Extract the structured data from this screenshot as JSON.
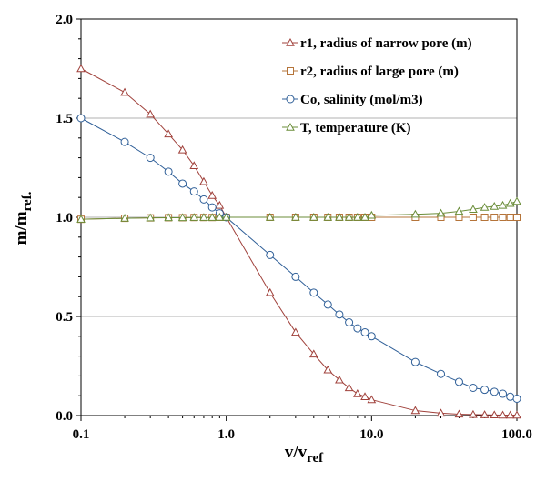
{
  "chart_data": {
    "type": "line",
    "xlabel": "v/v",
    "xlabel_sub": "ref",
    "ylabel": "m/m",
    "ylabel_sub": "ref.",
    "x_scale": "log",
    "xlim": [
      0.1,
      100
    ],
    "ylim": [
      0,
      2
    ],
    "x_ticks": [
      0.1,
      1,
      10,
      100
    ],
    "x_tick_labels": [
      "0.1",
      "1.0",
      "10.0",
      "100.0"
    ],
    "y_ticks": [
      0,
      0.5,
      1,
      1.5,
      2
    ],
    "y_tick_labels": [
      "0.0",
      "0.5",
      "1.0",
      "1.5",
      "2.0"
    ],
    "grid": "horizontal",
    "legend_position": "top-right",
    "series": [
      {
        "name": "r1, radius of narrow pore (m)",
        "marker": "triangle",
        "color": "#a0413b",
        "x": [
          0.1,
          0.2,
          0.3,
          0.4,
          0.5,
          0.6,
          0.7,
          0.8,
          0.9,
          1.0,
          2,
          3,
          4,
          5,
          6,
          7,
          8,
          9,
          10,
          20,
          30,
          40,
          50,
          60,
          70,
          80,
          90,
          100
        ],
        "y": [
          1.75,
          1.63,
          1.52,
          1.42,
          1.34,
          1.26,
          1.18,
          1.11,
          1.06,
          1.0,
          0.62,
          0.42,
          0.31,
          0.23,
          0.18,
          0.14,
          0.11,
          0.095,
          0.08,
          0.025,
          0.012,
          0.007,
          0.005,
          0.004,
          0.003,
          0.002,
          0.002,
          0.002
        ]
      },
      {
        "name": "r2, radius of large pore (m)",
        "marker": "square",
        "color": "#b5743a",
        "x": [
          0.1,
          0.2,
          0.3,
          0.4,
          0.5,
          0.6,
          0.7,
          0.8,
          0.9,
          1.0,
          2,
          3,
          4,
          5,
          6,
          7,
          8,
          9,
          10,
          20,
          30,
          40,
          50,
          60,
          70,
          80,
          90,
          100
        ],
        "y": [
          0.99,
          0.995,
          0.997,
          0.998,
          0.998,
          0.999,
          0.999,
          0.999,
          1.0,
          1.0,
          1.0,
          1.0,
          1.0,
          1.0,
          1.0,
          1.0,
          1.0,
          1.0,
          1.0,
          1.0,
          1.0,
          1.0,
          1.0,
          1.0,
          1.0,
          1.0,
          1.0,
          1.0
        ]
      },
      {
        "name": "Co, salinity (mol/m3)",
        "marker": "circle",
        "color": "#2f5f98",
        "x": [
          0.1,
          0.2,
          0.3,
          0.4,
          0.5,
          0.6,
          0.7,
          0.8,
          0.9,
          1.0,
          2,
          3,
          4,
          5,
          6,
          7,
          8,
          9,
          10,
          20,
          30,
          40,
          50,
          60,
          70,
          80,
          90,
          100
        ],
        "y": [
          1.5,
          1.38,
          1.3,
          1.23,
          1.17,
          1.13,
          1.09,
          1.05,
          1.02,
          1.0,
          0.81,
          0.7,
          0.62,
          0.56,
          0.51,
          0.47,
          0.44,
          0.42,
          0.4,
          0.27,
          0.21,
          0.17,
          0.14,
          0.13,
          0.12,
          0.11,
          0.095,
          0.085
        ]
      },
      {
        "name": "T, temperature (K)",
        "marker": "triangle",
        "color": "#6b8e3a",
        "x": [
          0.1,
          0.2,
          0.3,
          0.4,
          0.5,
          0.6,
          0.7,
          0.8,
          0.9,
          1.0,
          2,
          3,
          4,
          5,
          6,
          7,
          8,
          9,
          10,
          20,
          30,
          40,
          50,
          60,
          70,
          80,
          90,
          100
        ],
        "y": [
          0.99,
          0.995,
          0.997,
          0.998,
          0.998,
          0.999,
          0.999,
          0.999,
          1.0,
          1.0,
          1.0,
          1.0,
          1.0,
          1.0,
          1.0,
          1.0,
          1.0,
          1.0,
          1.01,
          1.015,
          1.02,
          1.03,
          1.04,
          1.05,
          1.055,
          1.06,
          1.07,
          1.08
        ]
      }
    ]
  }
}
